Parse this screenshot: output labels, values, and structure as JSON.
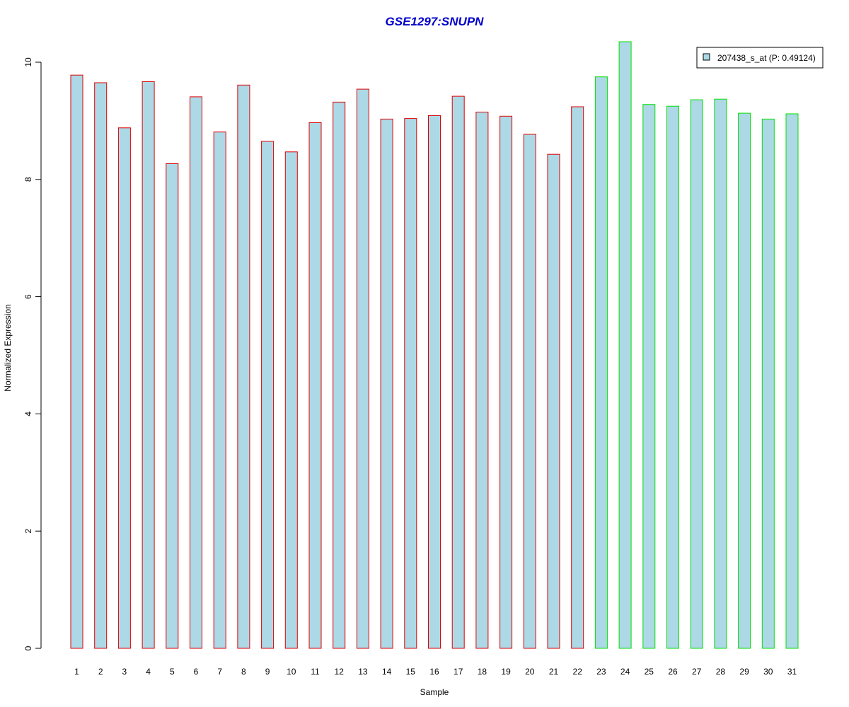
{
  "chart_data": {
    "type": "bar",
    "title": "GSE1297:SNUPN",
    "xlabel": "Sample",
    "ylabel": "Normalized Expression",
    "ylim": [
      0,
      10
    ],
    "yticks": [
      0,
      2,
      4,
      6,
      8,
      10
    ],
    "grid": false,
    "legend_position": "top-right",
    "categories": [
      "1",
      "2",
      "3",
      "4",
      "5",
      "6",
      "7",
      "8",
      "9",
      "10",
      "11",
      "12",
      "13",
      "14",
      "15",
      "16",
      "17",
      "18",
      "19",
      "20",
      "21",
      "22",
      "23",
      "24",
      "25",
      "26",
      "27",
      "28",
      "29",
      "30",
      "31"
    ],
    "series": [
      {
        "name": "207438_s_at (P: 0.49124)",
        "values": [
          9.78,
          9.65,
          8.88,
          9.67,
          8.27,
          9.41,
          8.81,
          9.61,
          8.65,
          8.47,
          8.97,
          9.32,
          9.54,
          9.03,
          9.04,
          9.09,
          9.42,
          9.15,
          9.08,
          8.77,
          8.43,
          9.24,
          9.75,
          10.35,
          9.28,
          9.25,
          9.36,
          9.37,
          9.13,
          9.03,
          9.12
        ],
        "groups": [
          "a",
          "a",
          "a",
          "a",
          "a",
          "a",
          "a",
          "a",
          "a",
          "a",
          "a",
          "a",
          "a",
          "a",
          "a",
          "a",
          "a",
          "a",
          "a",
          "a",
          "a",
          "a",
          "b",
          "b",
          "b",
          "b",
          "b",
          "b",
          "b",
          "b",
          "b"
        ]
      }
    ]
  },
  "colors": {
    "title": "#0000CC",
    "bar_fill": "#ADD8E6",
    "group_a_border": "#E00000",
    "group_b_border": "#00E000"
  }
}
